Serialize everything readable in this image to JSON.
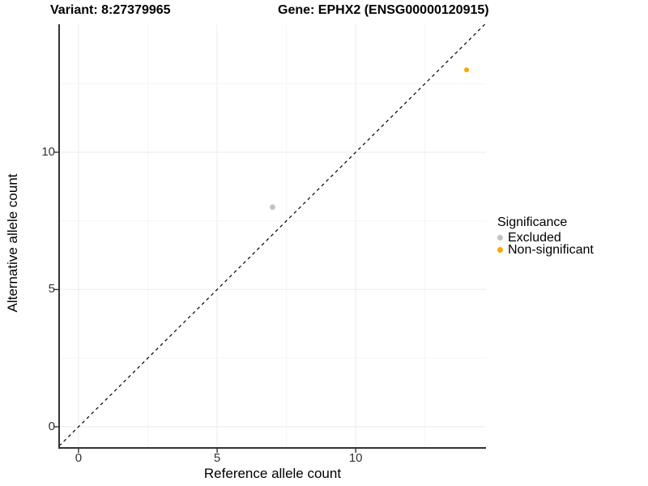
{
  "chart_data": {
    "type": "scatter",
    "title_left": "Variant: 8:27379965",
    "title_right": "Gene: EPHX2 (ENSG00000120915)",
    "xlabel": "Reference allele count",
    "ylabel": "Alternative allele count",
    "xlim": [
      -0.7,
      14.7
    ],
    "ylim": [
      -0.77,
      14.66
    ],
    "x_ticks": [
      0,
      5,
      10
    ],
    "y_ticks": [
      0,
      5,
      10
    ],
    "x_minor_ticks": [
      2.5,
      7.5,
      12.5
    ],
    "y_minor_ticks": [
      2.5,
      7.5,
      12.5
    ],
    "grid": true,
    "identity_line": {
      "style": "dashed",
      "color": "#000000",
      "x1": -0.7,
      "y1": -0.7,
      "x2": 14.66,
      "y2": 14.66
    },
    "series": [
      {
        "name": "Excluded",
        "color": "#c2c2c2",
        "point_radius": 3.4,
        "points": [
          [
            7,
            8
          ]
        ]
      },
      {
        "name": "Non-significant",
        "color": "#FFA500",
        "point_radius": 3.0,
        "points": [
          [
            14,
            13
          ]
        ]
      }
    ],
    "legend": {
      "title": "Significance",
      "position": "right",
      "items": [
        {
          "label": "Excluded",
          "color": "#c2c2c2"
        },
        {
          "label": "Non-significant",
          "color": "#FFA500"
        }
      ]
    },
    "colors": {
      "grid_major": "#ebebeb",
      "grid_minor": "#f5f5f5",
      "axis_line": "#333333",
      "tick_text": "#333333"
    }
  }
}
